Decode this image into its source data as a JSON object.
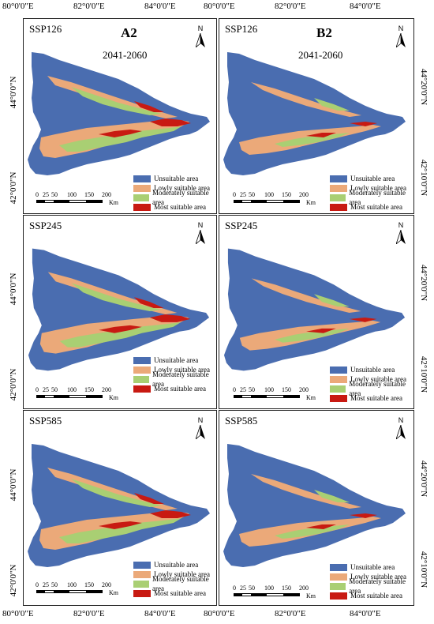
{
  "colors": {
    "unsuitable": "#4a6db0",
    "lowly": "#eba979",
    "moderately": "#a9cf73",
    "most": "#c81a12"
  },
  "lon_labels": [
    "80°0'0\"E",
    "82°0'0\"E",
    "84°0'0\"E"
  ],
  "lat_labels": [
    "44°0'0\"N",
    "42°0'0\"N"
  ],
  "lat_labels_right": [
    "44°20'0\"N",
    "42°10'0\"N"
  ],
  "legend": [
    "Unsuitable area",
    "Lowly suitable area",
    "Moderately suitable area",
    "Most suitable area"
  ],
  "scale": {
    "labels": [
      "0",
      "25",
      "50",
      "100",
      "150",
      "200"
    ],
    "unit": "Km"
  },
  "north": "N",
  "column_labels": {
    "left": "A2",
    "right": "B2"
  },
  "period": "2041-2060",
  "rows": [
    {
      "scenario": "SSP126"
    },
    {
      "scenario": "SSP245"
    },
    {
      "scenario": "SSP585"
    }
  ]
}
